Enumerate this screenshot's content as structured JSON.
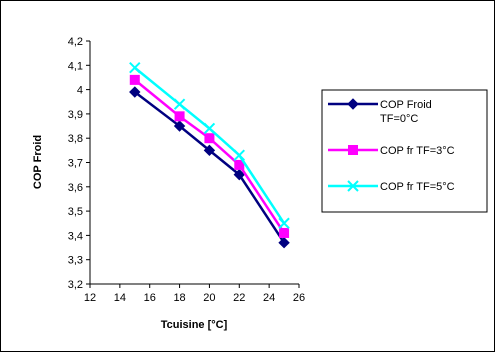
{
  "chart_data": {
    "type": "line",
    "title": "",
    "xlabel": "Tcuisine [°C]",
    "ylabel": "COP Froid",
    "xlim": [
      12,
      26
    ],
    "ylim": [
      3.2,
      4.2
    ],
    "x_ticks": [
      "12",
      "14",
      "16",
      "18",
      "20",
      "22",
      "24",
      "26"
    ],
    "y_ticks": [
      "3,2",
      "3,3",
      "3,4",
      "3,5",
      "3,6",
      "3,7",
      "3,8",
      "3,9",
      "4",
      "4,1",
      "4,2"
    ],
    "grid": false,
    "legend_position": "right",
    "x": [
      15,
      18,
      20,
      22,
      25
    ],
    "series": [
      {
        "name_lines": [
          "COP Froid",
          "TF=0°C"
        ],
        "marker": "diamond",
        "color": "#000080",
        "values": [
          3.99,
          3.85,
          3.75,
          3.65,
          3.37
        ]
      },
      {
        "name_lines": [
          "COP fr  TF=3°C"
        ],
        "marker": "square",
        "color": "#ff00ff",
        "values": [
          4.04,
          3.89,
          3.8,
          3.69,
          3.41
        ]
      },
      {
        "name_lines": [
          "COP fr TF=5°C"
        ],
        "marker": "x",
        "color": "#00ffff",
        "values": [
          4.09,
          3.94,
          3.84,
          3.73,
          3.45
        ]
      }
    ]
  }
}
